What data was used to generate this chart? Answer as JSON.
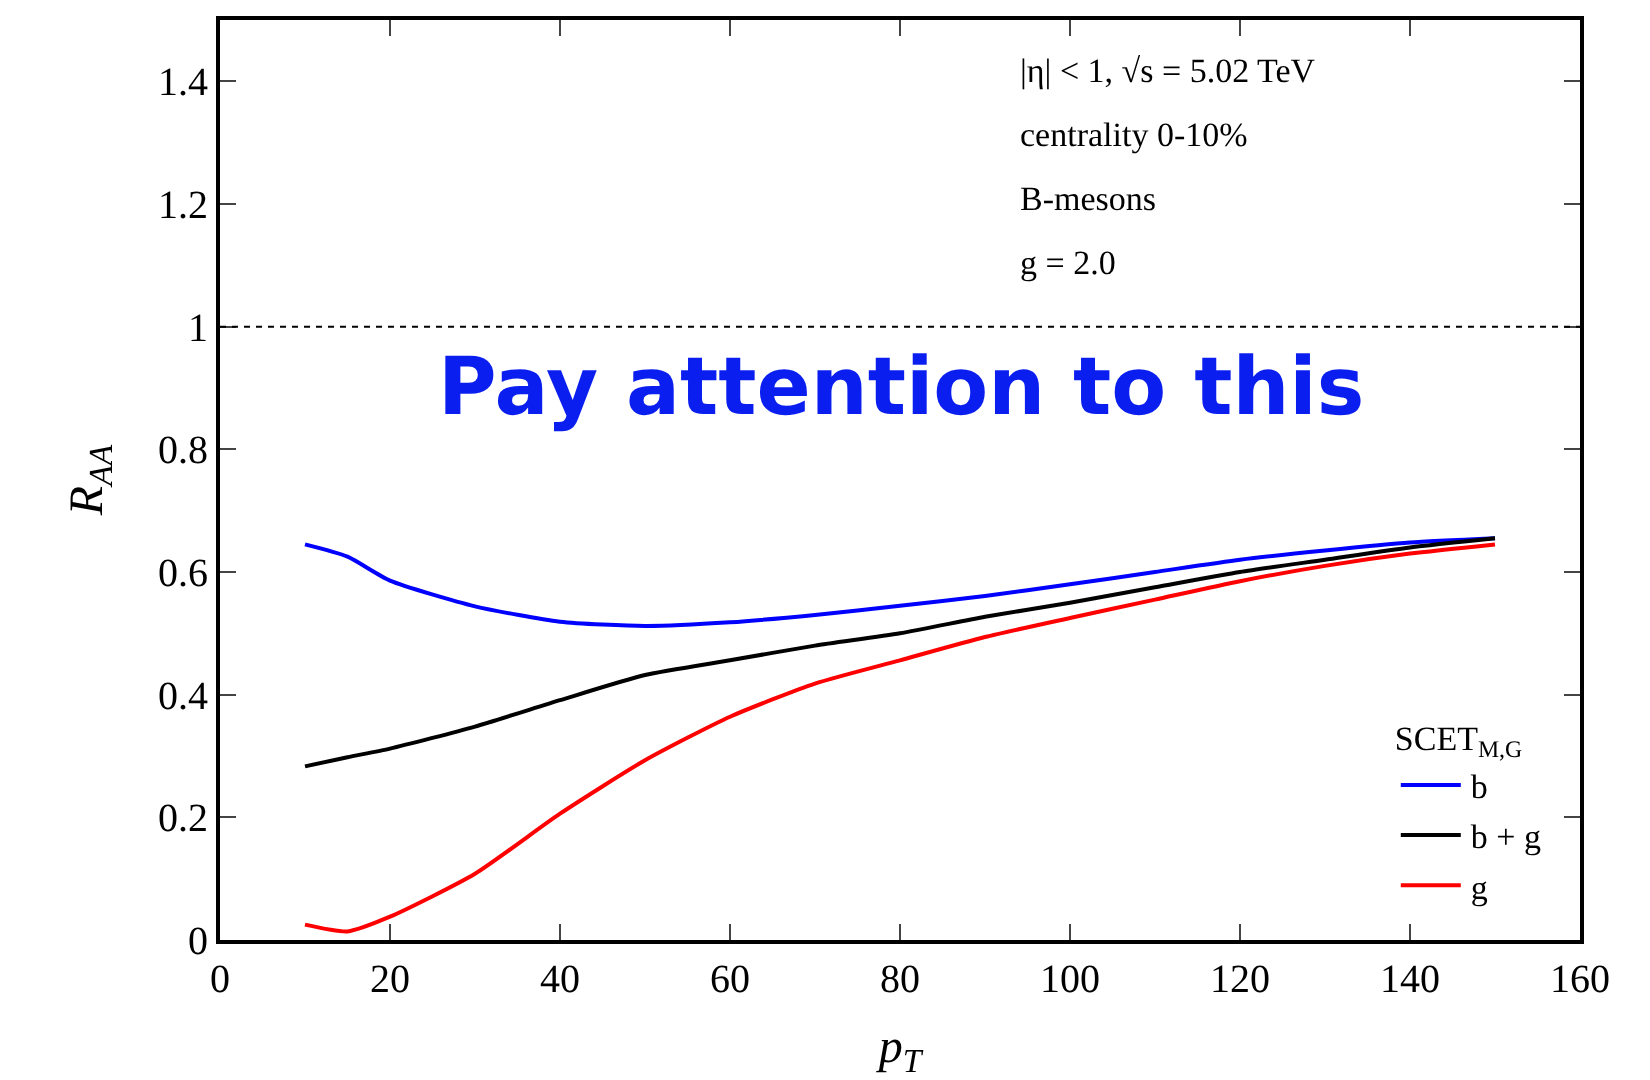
{
  "chart_data": {
    "type": "line",
    "xlabel": "p$_{T}$",
    "ylabel": "R$_{AA}$",
    "legend_title": "SCET$_{M,G}$",
    "annotations": [
      "|η| < 1, √s = 5.02 TeV",
      "centrality 0-10%",
      "B-mesons",
      "g = 2.0",
      "Pay attention to this"
    ],
    "x": [
      10,
      15,
      20,
      30,
      40,
      50,
      60,
      70,
      80,
      90,
      100,
      110,
      120,
      130,
      140,
      150
    ],
    "series": [
      {
        "name": "b",
        "color": "#0000ff",
        "values": [
          0.645,
          0.625,
          0.586,
          0.544,
          0.519,
          0.512,
          0.518,
          0.53,
          0.545,
          0.561,
          0.58,
          0.6,
          0.62,
          0.635,
          0.648,
          0.655
        ]
      },
      {
        "name": "b + g",
        "color": "#000000",
        "values": [
          0.283,
          0.298,
          0.312,
          0.348,
          0.391,
          0.432,
          0.456,
          0.48,
          0.5,
          0.527,
          0.55,
          0.575,
          0.6,
          0.62,
          0.64,
          0.655
        ]
      },
      {
        "name": "g",
        "color": "#ff0000",
        "values": [
          0.025,
          0.014,
          0.038,
          0.108,
          0.206,
          0.293,
          0.364,
          0.418,
          0.456,
          0.494,
          0.525,
          0.555,
          0.585,
          0.61,
          0.63,
          0.645
        ]
      }
    ],
    "xlim": [
      0,
      160
    ],
    "xticks": [
      0,
      20,
      40,
      60,
      80,
      100,
      120,
      140,
      160
    ],
    "ylim": [
      0,
      1.5
    ],
    "yticks": [
      0,
      0.2,
      0.4,
      0.6,
      0.8,
      1,
      1.2,
      1.4
    ],
    "ref_lines": [
      {
        "axis": "y",
        "value": 1,
        "color": "#000000",
        "line_style": "dotted"
      }
    ],
    "legend": "bottom right",
    "grid": false,
    "marker": "none",
    "line_style": "solid"
  }
}
